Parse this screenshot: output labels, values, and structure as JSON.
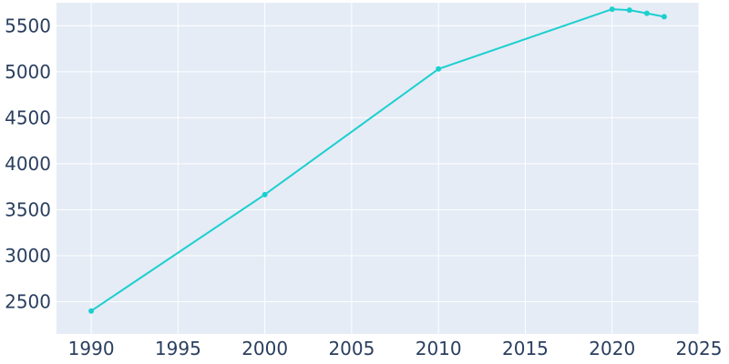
{
  "chart_data": {
    "type": "line",
    "title": "",
    "xlabel": "",
    "ylabel": "",
    "xlim": [
      1988,
      2025
    ],
    "ylim": [
      2150,
      5750
    ],
    "x_ticks": [
      1990,
      1995,
      2000,
      2005,
      2010,
      2015,
      2020,
      2025
    ],
    "y_ticks": [
      2500,
      3000,
      3500,
      4000,
      4500,
      5000,
      5500
    ],
    "x_tick_labels": [
      "1990",
      "1995",
      "2000",
      "2005",
      "2010",
      "2015",
      "2020",
      "2025"
    ],
    "y_tick_labels": [
      "2500",
      "3000",
      "3500",
      "4000",
      "4500",
      "5000",
      "5500"
    ],
    "grid": true,
    "series": [
      {
        "color": "#1ccfcf",
        "x": [
          1990,
          2000,
          2010,
          2020,
          2021,
          2022,
          2023
        ],
        "y": [
          2400,
          3665,
          5030,
          5680,
          5670,
          5635,
          5598
        ]
      }
    ],
    "colors": {
      "plot_background": "#e5ecf6",
      "grid": "#ffffff",
      "tick_text": "#2a3f5f"
    }
  }
}
